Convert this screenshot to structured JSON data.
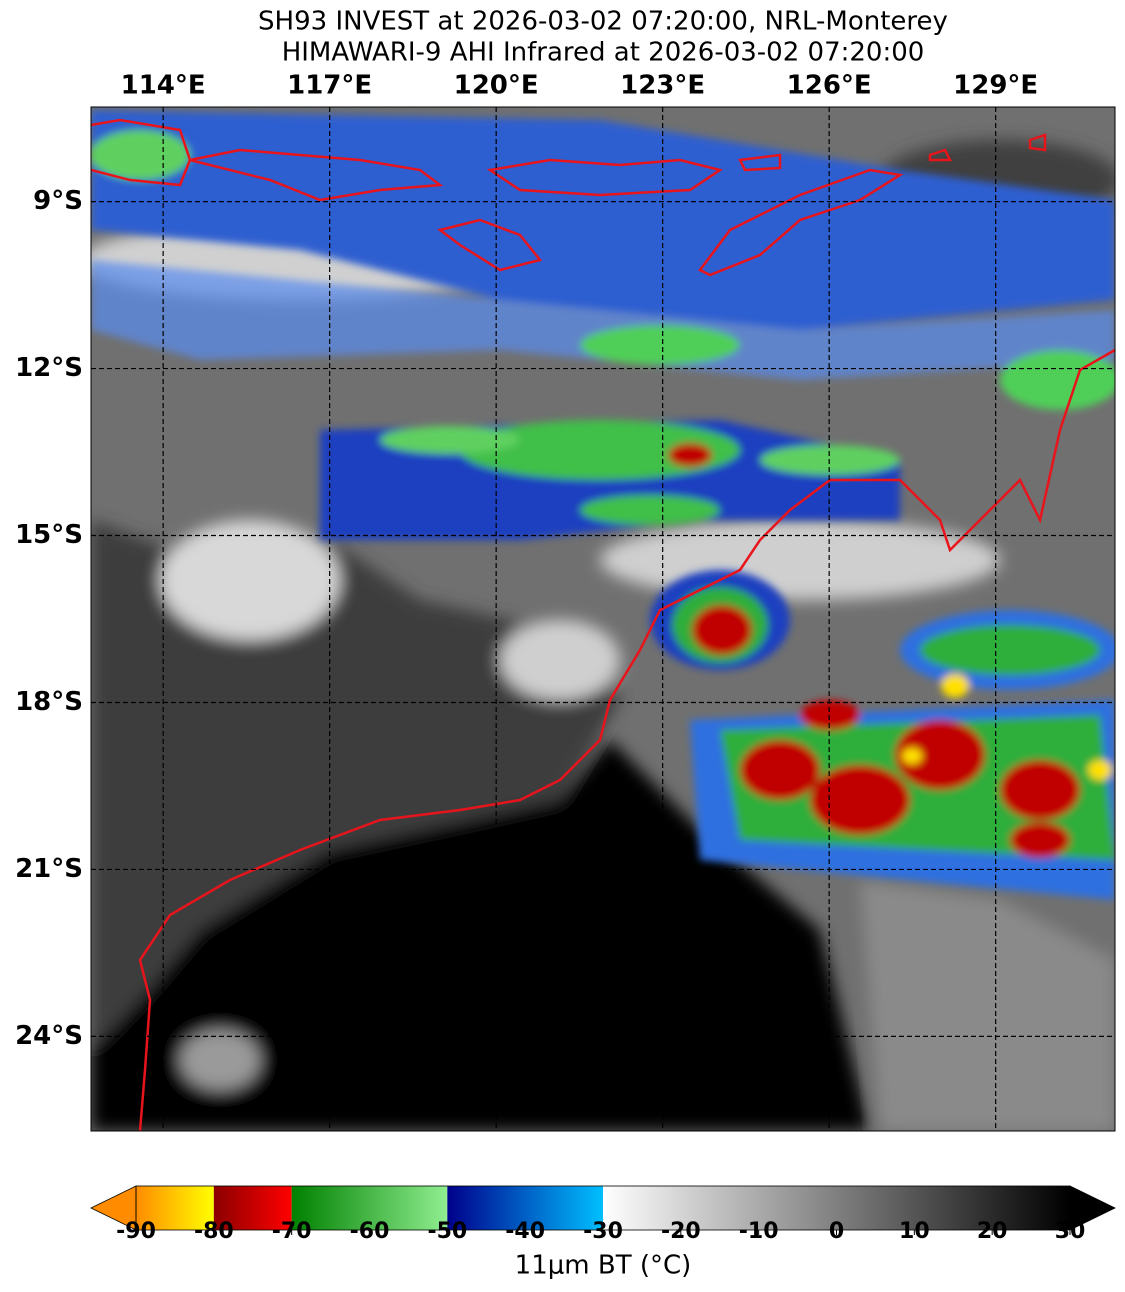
{
  "title": [
    "SH93 INVEST at 2026-03-02 07:20:00, NRL-Monterey",
    "HIMAWARI-9 AHI Infrared at 2026-03-02 07:20:00"
  ],
  "map": {
    "lonlim": [
      112.7,
      131.15
    ],
    "latlim": [
      -25.7,
      -7.3
    ],
    "lon_ticks": [
      {
        "value": 114,
        "label": "114°E"
      },
      {
        "value": 117,
        "label": "117°E"
      },
      {
        "value": 120,
        "label": "120°E"
      },
      {
        "value": 123,
        "label": "123°E"
      },
      {
        "value": 126,
        "label": "126°E"
      },
      {
        "value": 129,
        "label": "129°E"
      }
    ],
    "lat_ticks": [
      {
        "value": -9,
        "label": "9°S"
      },
      {
        "value": -12,
        "label": "12°S"
      },
      {
        "value": -15,
        "label": "15°S"
      },
      {
        "value": -18,
        "label": "18°S"
      },
      {
        "value": -21,
        "label": "21°S"
      },
      {
        "value": -24,
        "label": "24°S"
      }
    ],
    "grid": true,
    "coastline_color": "#e8141c"
  },
  "colorbar": {
    "lim": [
      -90,
      30
    ],
    "ticks": [
      -90,
      -80,
      -70,
      -60,
      -50,
      -40,
      -30,
      -20,
      -10,
      0,
      10,
      20,
      30
    ],
    "label": "11μm BT (°C)",
    "segments": [
      {
        "from": -90,
        "to": -80,
        "colors": [
          "#ff8c00",
          "#ffff00"
        ]
      },
      {
        "from": -80,
        "to": -70,
        "colors": [
          "#8b0000",
          "#ff0000"
        ]
      },
      {
        "from": -70,
        "to": -50,
        "colors": [
          "#008000",
          "#90ee90"
        ]
      },
      {
        "from": -50,
        "to": -30,
        "colors": [
          "#00008b",
          "#00bfff"
        ]
      },
      {
        "from": -30,
        "to": 30,
        "colors": [
          "#ffffff",
          "#000000"
        ]
      }
    ],
    "extend_colors": [
      "#ff8c00",
      "#000000"
    ]
  }
}
